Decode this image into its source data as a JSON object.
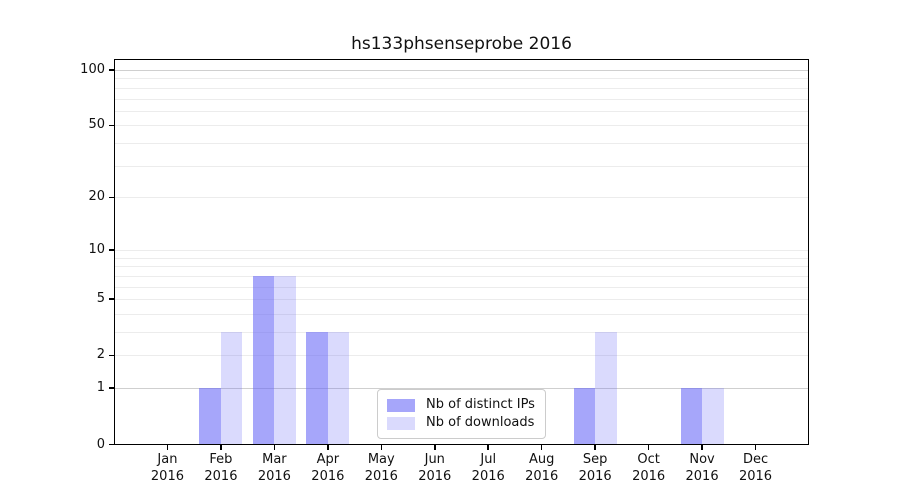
{
  "chart_data": {
    "type": "bar",
    "title": "hs133phsenseprobe 2016",
    "categories": [
      "Jan",
      "Feb",
      "Mar",
      "Apr",
      "May",
      "Jun",
      "Jul",
      "Aug",
      "Sep",
      "Oct",
      "Nov",
      "Dec"
    ],
    "year_label": "2016",
    "series": [
      {
        "name": "Nb of distinct IPs",
        "color": "rgba(102,102,247,0.58)",
        "values": [
          0,
          1,
          7,
          3,
          0,
          0,
          0,
          0,
          1,
          0,
          1,
          0
        ]
      },
      {
        "name": "Nb of downloads",
        "color": "rgba(102,102,247,0.24)",
        "values": [
          0,
          3,
          7,
          3,
          0,
          0,
          0,
          0,
          3,
          0,
          1,
          0
        ]
      }
    ],
    "yscale": "log1p",
    "ylim": [
      0,
      114.6
    ],
    "y_ticks": [
      0,
      1,
      2,
      5,
      10,
      20,
      50,
      100
    ],
    "y_minor_gridlines": [
      3,
      4,
      6,
      7,
      8,
      9,
      30,
      40,
      60,
      70,
      80,
      90
    ],
    "y_emphasized_gridlines": [
      1,
      100
    ],
    "xlabel": "",
    "ylabel": "",
    "grid": "horizontal",
    "legend_position": "lower-center-inside"
  },
  "colors": {
    "background": "#ffffff",
    "spine": "#000000",
    "grid_minor": "#ececec",
    "grid_emphasis": "#cfcfcf",
    "text": "#111111",
    "legend_border": "#cccccc",
    "legend_bg": "rgba(255,255,255,0.85)"
  }
}
